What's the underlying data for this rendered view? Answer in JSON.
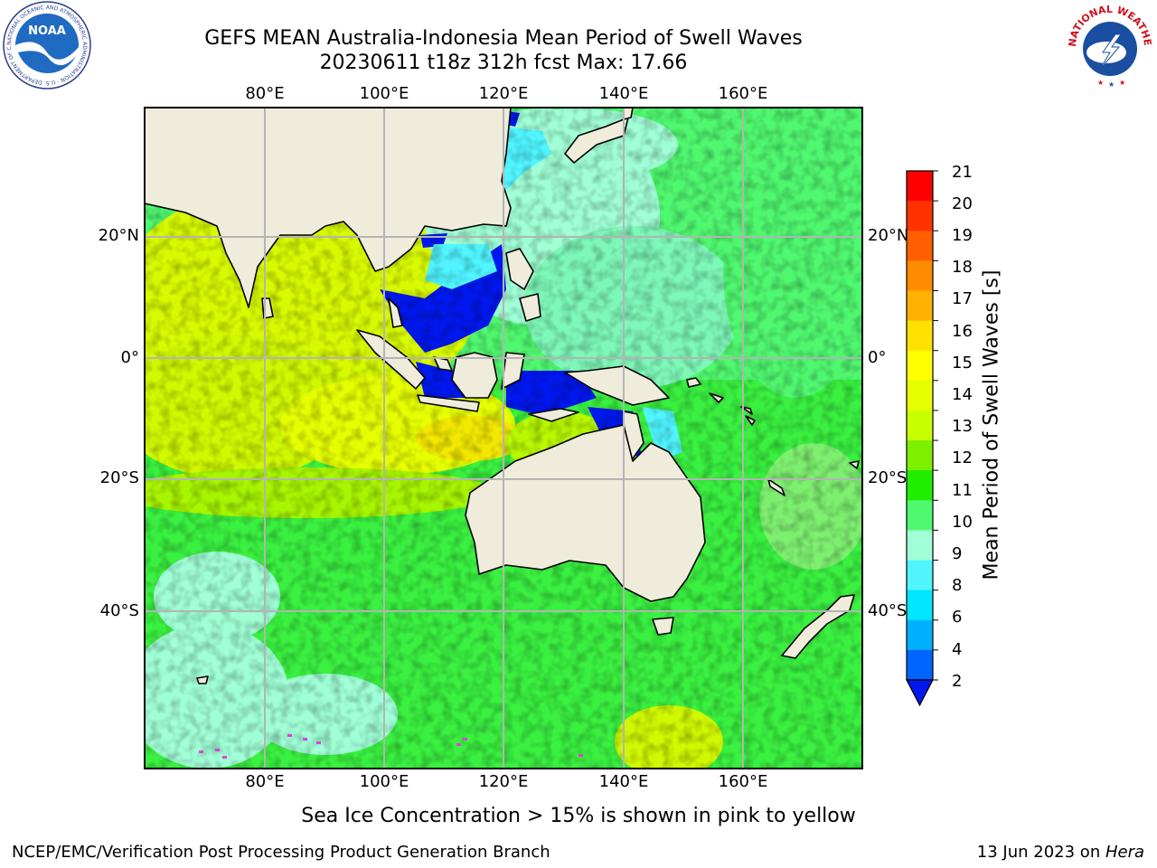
{
  "title": {
    "line1": "GEFS MEAN Australia-Indonesia Mean Period of Swell Waves",
    "line2": "20230611 t18z 312h fcst   Max: 17.66"
  },
  "axes": {
    "lon_labels": [
      "80°E",
      "100°E",
      "120°E",
      "140°E",
      "160°E"
    ],
    "lat_labels": [
      "20°N",
      "0°",
      "20°S",
      "40°S"
    ]
  },
  "colorbar": {
    "label": "Mean Period of Swell Waves [s]",
    "ticks": [
      "21",
      "20",
      "19",
      "18",
      "17",
      "16",
      "15",
      "14",
      "13",
      "12",
      "11",
      "10",
      "9",
      "8",
      "6",
      "4",
      "2"
    ],
    "colors": [
      "#ff0000",
      "#ff3300",
      "#ff5f00",
      "#ff8c00",
      "#ffb000",
      "#ffe100",
      "#ffff00",
      "#e6ff00",
      "#c8ff00",
      "#7df000",
      "#20ee00",
      "#50f870",
      "#a0ffd6",
      "#50f5ff",
      "#00e6ff",
      "#00b0ff",
      "#0064ff"
    ],
    "extend_color": "#0018f0"
  },
  "caption": "Sea Ice Concentration > 15% is shown in pink to yellow",
  "footer": {
    "left": "NCEP/EMC/Verification Post Processing Product Generation Branch",
    "date": "13 Jun 2023 on ",
    "host": "Hera"
  },
  "logos": {
    "noaa_text": "NOAA",
    "noaa_ring": "NATIONAL OCEANIC AND ATMOSPHERIC ADMINISTRATION · U.S. DEPARTMENT OF COMMERCE",
    "nws_ring": "NATIONAL WEATHER SERVICE"
  },
  "colors": {
    "land": "#efecdc",
    "grid": "#b4b4b4"
  }
}
